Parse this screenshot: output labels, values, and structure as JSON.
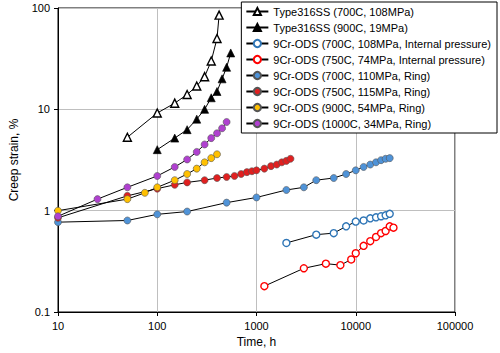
{
  "chart_data": {
    "type": "line",
    "x_label": "Time, h",
    "y_label": "Creep strain, %",
    "log": true,
    "grid": true,
    "legend": "upper right",
    "xlim": [
      10,
      100000
    ],
    "xticks": [
      10,
      100,
      1000,
      10000,
      100000
    ],
    "ylim": [
      0.1,
      100
    ],
    "yticks": [
      0.1,
      1,
      10,
      100
    ],
    "series": [
      {
        "name": "Type316SS (700C, 108MPa)",
        "color": "#000000",
        "marker": "open_triangle",
        "x": [
          50,
          100,
          150,
          200,
          250,
          300,
          350,
          400,
          420
        ],
        "values": [
          5.3,
          9.2,
          11.5,
          14,
          17,
          21,
          30,
          50,
          85
        ]
      },
      {
        "name": "Type316SS (900C, 19MPa)",
        "color": "#000000",
        "marker": "filled_triangle",
        "x": [
          100,
          150,
          200,
          250,
          300,
          350,
          400,
          450,
          500,
          550
        ],
        "values": [
          4,
          5.2,
          6.3,
          8,
          10,
          13,
          15,
          20,
          26,
          36
        ]
      },
      {
        "name": "9Cr-ODS (700C, 108MPa, Internal pressure)",
        "color": "#2e75b6",
        "marker": "open_circle",
        "x": [
          2000,
          4000,
          6000,
          8000,
          10000,
          12000,
          14000,
          16000,
          18000,
          20000,
          22000
        ],
        "values": [
          0.48,
          0.58,
          0.6,
          0.7,
          0.78,
          0.8,
          0.84,
          0.86,
          0.88,
          0.9,
          0.93
        ]
      },
      {
        "name": "9Cr-ODS (750C, 74MPa, Internal pressure)",
        "color": "#ff0000",
        "marker": "open_circle",
        "x": [
          1200,
          3000,
          5000,
          7000,
          9000,
          10000,
          12000,
          14000,
          16000,
          18000,
          20000,
          22000,
          24000
        ],
        "values": [
          0.18,
          0.27,
          0.3,
          0.29,
          0.33,
          0.38,
          0.45,
          0.5,
          0.55,
          0.6,
          0.63,
          0.7,
          0.68
        ]
      },
      {
        "name": "9Cr-ODS (700C, 110MPa, Ring)",
        "color": "#4f93d8",
        "marker": "filled_circle",
        "x": [
          10,
          50,
          100,
          200,
          500,
          1000,
          2000,
          3000,
          4000,
          6000,
          8000,
          10000,
          12000,
          14000,
          16000,
          18000,
          20000,
          22000
        ],
        "values": [
          0.77,
          0.8,
          0.92,
          0.98,
          1.2,
          1.35,
          1.6,
          1.7,
          2.0,
          2.1,
          2.3,
          2.5,
          2.7,
          2.85,
          3.0,
          3.15,
          3.25,
          3.3
        ]
      },
      {
        "name": "9Cr-ODS (750C, 115MPa, Ring)",
        "color": "#e02020",
        "marker": "filled_circle",
        "x": [
          10,
          50,
          100,
          150,
          200,
          300,
          400,
          500,
          600,
          700,
          800,
          900,
          1000,
          1200,
          1400,
          1600,
          1800,
          2000,
          2200
        ],
        "values": [
          0.85,
          1.4,
          1.65,
          1.8,
          1.9,
          2.0,
          2.1,
          2.15,
          2.2,
          2.3,
          2.4,
          2.45,
          2.5,
          2.6,
          2.75,
          2.85,
          3.0,
          3.1,
          3.25
        ]
      },
      {
        "name": "9Cr-ODS (900C, 54MPa, Ring)",
        "color": "#ffc000",
        "marker": "filled_circle",
        "x": [
          10,
          50,
          75,
          100,
          150,
          200,
          250,
          300,
          350,
          400
        ],
        "values": [
          1.0,
          1.3,
          1.5,
          1.7,
          2.0,
          2.3,
          2.6,
          3.0,
          3.3,
          3.6
        ]
      },
      {
        "name": "9Cr-ODS (1000C, 34MPa, Ring)",
        "color": "#b040d0",
        "marker": "filled_circle",
        "x": [
          10,
          25,
          50,
          100,
          150,
          200,
          250,
          300,
          350,
          400,
          450,
          500
        ],
        "values": [
          0.88,
          1.3,
          1.7,
          2.2,
          2.7,
          3.2,
          3.8,
          4.5,
          5.2,
          5.8,
          6.5,
          7.5
        ]
      }
    ]
  }
}
